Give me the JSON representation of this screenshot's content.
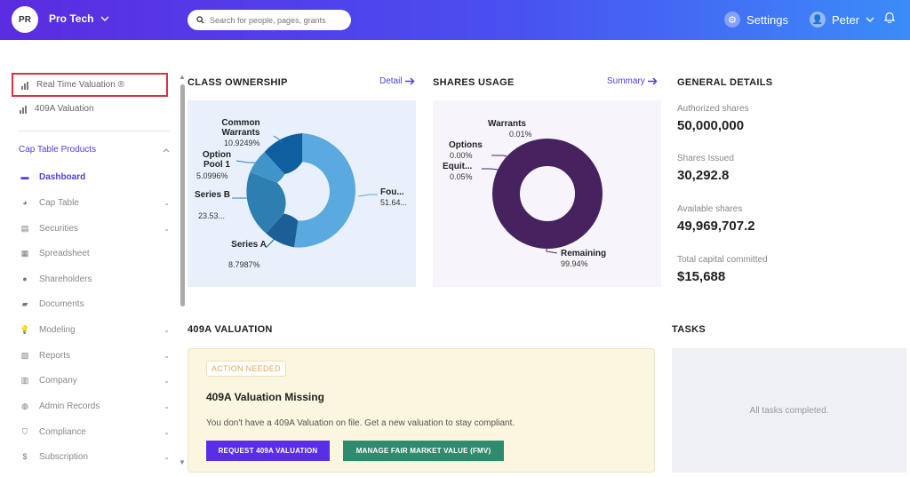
{
  "topbar": {
    "avatar_initials": "PR",
    "org_name": "Pro Tech",
    "search_placeholder": "Search for people, pages, grants",
    "settings_label": "Settings",
    "user_name": "Peter"
  },
  "sidebar": {
    "top_links": [
      {
        "label": "Real Time Valuation ®",
        "icon": "bar-chart-icon"
      },
      {
        "label": "409A Valuation",
        "icon": "bar-chart-icon"
      }
    ],
    "section_label": "Cap Table Products",
    "items": [
      {
        "label": "Dashboard",
        "icon": "dashboard-icon",
        "active": true,
        "chevron": false
      },
      {
        "label": "Cap Table",
        "icon": "pie-icon",
        "chevron": true
      },
      {
        "label": "Securities",
        "icon": "securities-icon",
        "chevron": true
      },
      {
        "label": "Spreadsheet",
        "icon": "spreadsheet-icon",
        "chevron": false
      },
      {
        "label": "Shareholders",
        "icon": "person-icon",
        "chevron": false
      },
      {
        "label": "Documents",
        "icon": "folder-icon",
        "chevron": false
      },
      {
        "label": "Modeling",
        "icon": "bulb-icon",
        "chevron": true
      },
      {
        "label": "Reports",
        "icon": "reports-icon",
        "chevron": true
      },
      {
        "label": "Company",
        "icon": "company-icon",
        "chevron": true
      },
      {
        "label": "Admin Records",
        "icon": "records-icon",
        "chevron": true
      },
      {
        "label": "Compliance",
        "icon": "shield-icon",
        "chevron": true
      },
      {
        "label": "Subscription",
        "icon": "dollar-icon",
        "chevron": true
      }
    ]
  },
  "class_ownership": {
    "title": "CLASS OWNERSHIP",
    "link_label": "Detail",
    "labels": {
      "common_warrants": "Common Warrants",
      "common_warrants_pct": "10.9249%",
      "option_pool": "Option Pool 1",
      "option_pool_pct": "5.0996%",
      "series_b": "Series B",
      "series_b_pct": "23.53...",
      "series_a": "Series A",
      "series_a_pct": "8.7987%",
      "founders": "Fou...",
      "founders_pct": "51.64..."
    }
  },
  "shares_usage": {
    "title": "SHARES USAGE",
    "link_label": "Summary",
    "labels": {
      "warrants": "Warrants",
      "warrants_pct": "0.01%",
      "options": "Options",
      "options_pct": "0.00%",
      "equity": "Equit...",
      "equity_pct": "0.05%",
      "remaining": "Remaining",
      "remaining_pct": "99.94%"
    }
  },
  "general_details": {
    "title": "GENERAL DETAILS",
    "items": [
      {
        "label": "Authorized shares",
        "value": "50,000,000"
      },
      {
        "label": "Shares Issued",
        "value": "30,292.8"
      },
      {
        "label": "Available shares",
        "value": "49,969,707.2"
      },
      {
        "label": "Total capital committed",
        "value": "$15,688"
      }
    ]
  },
  "valuation_409a": {
    "title": "409A VALUATION",
    "badge": "ACTION NEEDED",
    "heading": "409A Valuation Missing",
    "text": "You don't have a 409A Valuation on file. Get a new valuation to stay compliant.",
    "btn_request": "REQUEST 409A VALUATION",
    "btn_fmv": "MANAGE FAIR MARKET VALUE (FMV)"
  },
  "tasks": {
    "title": "TASKS",
    "empty_text": "All tasks completed."
  },
  "colors": {
    "accent": "#5140d8",
    "founders": "#5aa9df",
    "series_a": "#1c5f96",
    "series_b": "#2e7eb2",
    "option_pool": "#3f95c8",
    "common_warrants": "#0f5ea0",
    "remaining": "#46235f"
  }
}
